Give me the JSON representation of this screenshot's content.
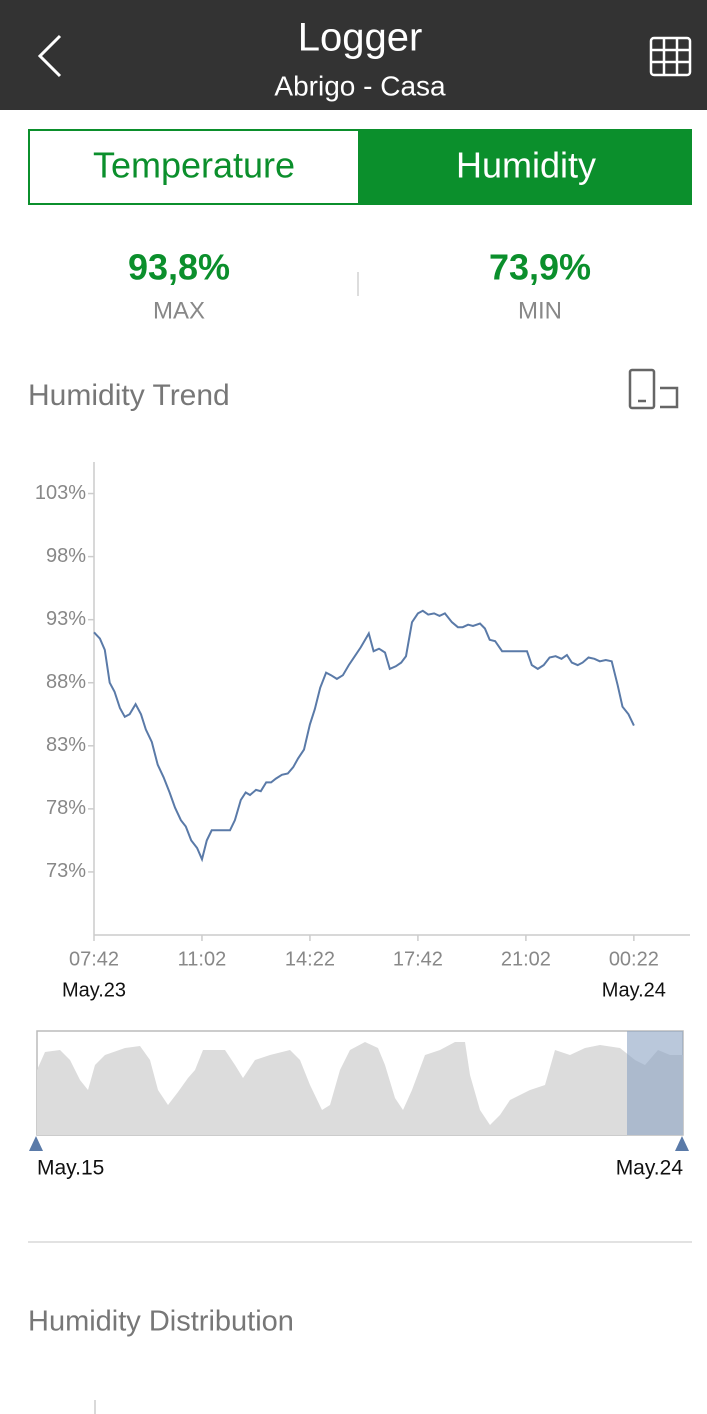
{
  "header": {
    "title": "Logger",
    "subtitle": "Abrigo - Casa"
  },
  "tabs": [
    "Temperature",
    "Humidity"
  ],
  "stats": [
    {
      "value": "93,8%",
      "label": "MAX"
    },
    {
      "value": "73,9%",
      "label": "MIN"
    }
  ],
  "trend_title": "Humidity Trend",
  "chart_data": {
    "type": "line",
    "color": "#5a7aa8",
    "x": [
      "07:42",
      "07:53",
      "08:02",
      "08:11",
      "08:20",
      "08:30",
      "08:39",
      "08:48",
      "08:59",
      "09:09",
      "09:18",
      "09:29",
      "09:40",
      "09:51",
      "10:02",
      "10:12",
      "10:23",
      "10:32",
      "10:42",
      "10:53",
      "11:02",
      "11:11",
      "11:20",
      "11:54",
      "12:03",
      "12:14",
      "12:23",
      "12:31",
      "12:42",
      "12:51",
      "13:01",
      "13:10",
      "13:19",
      "13:30",
      "13:41",
      "13:51",
      "14:00",
      "14:11",
      "14:22",
      "14:31",
      "14:41",
      "14:52",
      "15:01",
      "15:12",
      "15:23",
      "15:34",
      "15:45",
      "15:56",
      "16:11",
      "16:20",
      "16:30",
      "16:41",
      "16:50",
      "17:01",
      "17:11",
      "17:20",
      "17:31",
      "17:42",
      "17:51",
      "18:01",
      "18:12",
      "18:22",
      "18:32",
      "18:45",
      "18:56",
      "19:05",
      "19:15",
      "19:24",
      "19:37",
      "19:46",
      "19:55",
      "20:05",
      "20:18",
      "20:29",
      "21:04",
      "21:13",
      "21:24",
      "21:35",
      "21:46",
      "21:57",
      "22:08",
      "22:18",
      "22:27",
      "22:38",
      "22:47",
      "22:58",
      "23:09",
      "23:19",
      "23:30",
      "23:41",
      "23:52",
      "00:01",
      "00:12",
      "00:22"
    ],
    "values": [
      92.0,
      91.5,
      90.6,
      88.0,
      87.3,
      86.0,
      85.3,
      85.5,
      86.3,
      85.5,
      84.3,
      83.3,
      81.5,
      80.5,
      79.3,
      78.1,
      77.1,
      76.6,
      75.5,
      74.9,
      74.0,
      75.5,
      76.3,
      76.3,
      77.1,
      78.7,
      79.3,
      79.1,
      79.5,
      79.4,
      80.1,
      80.1,
      80.4,
      80.7,
      80.8,
      81.3,
      82.0,
      82.7,
      84.7,
      85.9,
      87.6,
      88.8,
      88.6,
      88.3,
      88.6,
      89.4,
      90.1,
      90.8,
      91.9,
      90.5,
      90.7,
      90.4,
      89.1,
      89.3,
      89.6,
      90.1,
      92.8,
      93.5,
      93.7,
      93.4,
      93.5,
      93.3,
      93.5,
      92.8,
      92.4,
      92.4,
      92.6,
      92.5,
      92.7,
      92.3,
      91.4,
      91.3,
      90.5,
      90.5,
      90.5,
      89.4,
      89.1,
      89.4,
      90.0,
      90.1,
      89.9,
      90.2,
      89.6,
      89.4,
      89.6,
      90.0,
      89.9,
      89.7,
      89.8,
      89.7,
      87.8,
      86.1,
      85.5,
      84.6
    ],
    "xlim": [
      "07:42",
      "02:06"
    ],
    "xticks": [
      "07:42",
      "11:02",
      "14:22",
      "17:42",
      "21:02",
      "00:22"
    ],
    "ylim": [
      68,
      105.5
    ],
    "yticks": [
      {
        "value": 73,
        "label": "73%"
      },
      {
        "value": 78,
        "label": "78%"
      },
      {
        "value": 83,
        "label": "83%"
      },
      {
        "value": 88,
        "label": "88%"
      },
      {
        "value": 93,
        "label": "93%"
      },
      {
        "value": 98,
        "label": "98%"
      },
      {
        "value": 103,
        "label": "103%"
      }
    ],
    "start_date": "May.23",
    "end_date": "May.24"
  },
  "overview": {
    "start": "May.15",
    "end": "May.24"
  },
  "distribution_title": "Humidity Distribution"
}
